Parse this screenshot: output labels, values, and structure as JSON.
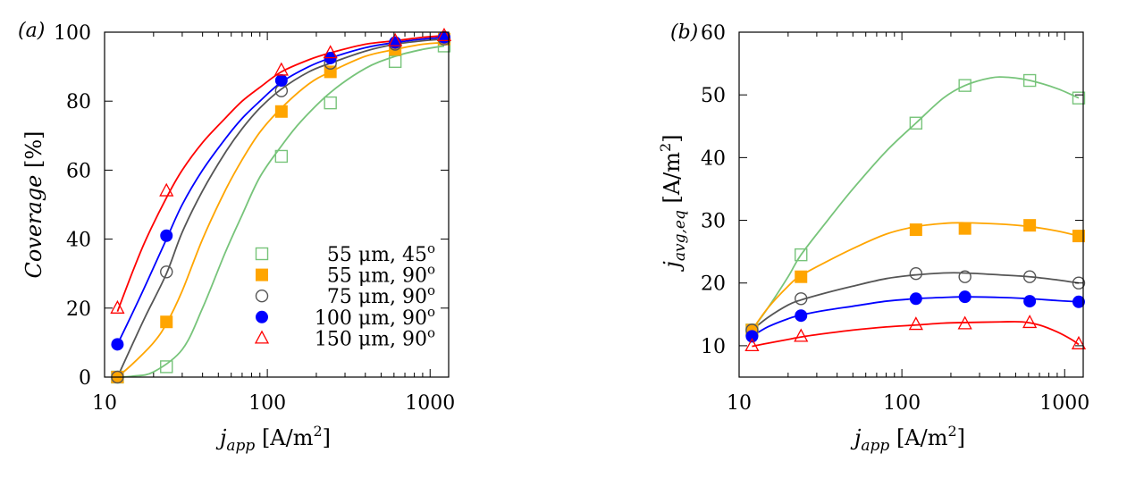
{
  "chart_data": [
    {
      "panel_label": "(a)",
      "type": "scatter",
      "xscale": "log",
      "xlim": [
        10,
        1300
      ],
      "ylim": [
        0,
        100
      ],
      "xticks": [
        {
          "v": 10,
          "label": "10"
        },
        {
          "v": 100,
          "label": "100"
        },
        {
          "v": 1000,
          "label": "1000"
        }
      ],
      "yticks": [
        {
          "v": 0,
          "label": "0"
        },
        {
          "v": 20,
          "label": "20"
        },
        {
          "v": 40,
          "label": "40"
        },
        {
          "v": 60,
          "label": "60"
        },
        {
          "v": 80,
          "label": "80"
        },
        {
          "v": 100,
          "label": "100"
        }
      ],
      "xlabel_main": "j",
      "xlabel_sub": "app",
      "xlabel_unit": " [A/m",
      "xlabel_sup": "2",
      "xlabel_close": "]",
      "ylabel_main": "Coverage",
      "ylabel_unit": " [%]",
      "legend_position": "bottom-right",
      "series": [
        {
          "name": "55 μm, 45°",
          "unit_text": "55 μm, 45",
          "deg": "o",
          "color": "#77c47a",
          "marker": "square-open",
          "x": [
            12,
            24,
            122,
            244,
            610,
            1220
          ],
          "y": [
            0,
            3,
            64,
            79.5,
            91.5,
            96
          ],
          "curve": [
            [
              12,
              0
            ],
            [
              15,
              0.3
            ],
            [
              20,
              1.5
            ],
            [
              30,
              8
            ],
            [
              40,
              20
            ],
            [
              55,
              36
            ],
            [
              70,
              47
            ],
            [
              90,
              58
            ],
            [
              122,
              67
            ],
            [
              160,
              74
            ],
            [
              244,
              82.5
            ],
            [
              400,
              89.5
            ],
            [
              610,
              93
            ],
            [
              900,
              95
            ],
            [
              1220,
              96
            ]
          ]
        },
        {
          "name": "55 μm, 90°",
          "unit_text": "55 μm, 90",
          "deg": "o",
          "color": "#ffa500",
          "marker": "square-filled",
          "x": [
            12,
            24,
            122,
            244,
            610,
            1220
          ],
          "y": [
            0,
            16,
            77,
            88.5,
            95,
            98
          ],
          "curve": [
            [
              12,
              0
            ],
            [
              15,
              4
            ],
            [
              20,
              10
            ],
            [
              24,
              15.5
            ],
            [
              30,
              25
            ],
            [
              40,
              40
            ],
            [
              55,
              54
            ],
            [
              70,
              63
            ],
            [
              90,
              71
            ],
            [
              122,
              78
            ],
            [
              180,
              85
            ],
            [
              244,
              88.5
            ],
            [
              400,
              93
            ],
            [
              610,
              95
            ],
            [
              900,
              96.5
            ],
            [
              1220,
              97
            ]
          ]
        },
        {
          "name": "75 μm, 90°",
          "unit_text": "75 μm, 90",
          "deg": "o",
          "color": "#555555",
          "marker": "circle-open",
          "x": [
            12,
            24,
            122,
            244,
            610,
            1220
          ],
          "y": [
            0,
            30.5,
            83,
            91,
            96.5,
            98
          ],
          "curve": [
            [
              12,
              0
            ],
            [
              15,
              10
            ],
            [
              18,
              18
            ],
            [
              24,
              30
            ],
            [
              30,
              42
            ],
            [
              40,
              54
            ],
            [
              55,
              65
            ],
            [
              70,
              72
            ],
            [
              90,
              78
            ],
            [
              122,
              83.5
            ],
            [
              180,
              88.5
            ],
            [
              244,
              91
            ],
            [
              400,
              94.5
            ],
            [
              610,
              96.5
            ],
            [
              900,
              97.5
            ],
            [
              1220,
              98
            ]
          ]
        },
        {
          "name": "100 μm, 90°",
          "unit_text": "100 μm, 90",
          "deg": "o",
          "color": "#0000ff",
          "marker": "circle-filled",
          "x": [
            12,
            24,
            122,
            244,
            610,
            1220
          ],
          "y": [
            9.5,
            41,
            86,
            92.5,
            97,
            98.5
          ],
          "curve": [
            [
              12,
              9.5
            ],
            [
              15,
              19
            ],
            [
              18,
              27
            ],
            [
              24,
              40
            ],
            [
              30,
              50
            ],
            [
              40,
              60
            ],
            [
              55,
              69
            ],
            [
              70,
              75
            ],
            [
              90,
              80
            ],
            [
              122,
              85.5
            ],
            [
              180,
              90
            ],
            [
              244,
              92.5
            ],
            [
              400,
              95.5
            ],
            [
              610,
              97
            ],
            [
              900,
              98
            ],
            [
              1220,
              98.5
            ]
          ]
        },
        {
          "name": "150 μm, 90°",
          "unit_text": "150 μm, 90",
          "deg": "o",
          "color": "#ff0000",
          "marker": "triangle-open",
          "x": [
            12,
            24,
            122,
            244,
            610,
            1220
          ],
          "y": [
            20,
            54,
            89,
            94,
            97.5,
            99
          ],
          "curve": [
            [
              12,
              19
            ],
            [
              15,
              31
            ],
            [
              18,
              40
            ],
            [
              24,
              52
            ],
            [
              30,
              60
            ],
            [
              40,
              68
            ],
            [
              55,
              75
            ],
            [
              70,
              80
            ],
            [
              90,
              84
            ],
            [
              122,
              88.5
            ],
            [
              180,
              92
            ],
            [
              244,
              94
            ],
            [
              400,
              96.5
            ],
            [
              610,
              97.5
            ],
            [
              900,
              98.5
            ],
            [
              1220,
              99
            ]
          ]
        }
      ]
    },
    {
      "panel_label": "(b)",
      "type": "scatter",
      "xscale": "log",
      "xlim": [
        10,
        1300
      ],
      "ylim": [
        5,
        60
      ],
      "xticks": [
        {
          "v": 10,
          "label": "10"
        },
        {
          "v": 100,
          "label": "100"
        },
        {
          "v": 1000,
          "label": "1000"
        }
      ],
      "yticks": [
        {
          "v": 10,
          "label": "10"
        },
        {
          "v": 20,
          "label": "20"
        },
        {
          "v": 30,
          "label": "30"
        },
        {
          "v": 40,
          "label": "40"
        },
        {
          "v": 50,
          "label": "50"
        },
        {
          "v": 60,
          "label": "60"
        }
      ],
      "xlabel_main": "j",
      "xlabel_sub": "app",
      "xlabel_unit": " [A/m",
      "xlabel_sup": "2",
      "xlabel_close": "]",
      "ylabel_main": "j",
      "ylabel_sub": "avg,eq",
      "ylabel_unit": " [A/m",
      "ylabel_sup": "2",
      "ylabel_close": "]",
      "series": [
        {
          "name": "55 μm, 45°",
          "color": "#77c47a",
          "marker": "square-open",
          "x": [
            12,
            24,
            122,
            244,
            610,
            1220
          ],
          "y": [
            12.5,
            24.5,
            45.5,
            51.5,
            52.3,
            49.5
          ],
          "curve": [
            [
              12,
              12.5
            ],
            [
              15,
              16
            ],
            [
              20,
              21
            ],
            [
              24,
              24.5
            ],
            [
              35,
              30
            ],
            [
              50,
              35
            ],
            [
              80,
              41
            ],
            [
              122,
              45.5
            ],
            [
              180,
              49.5
            ],
            [
              244,
              51.5
            ],
            [
              350,
              52.7
            ],
            [
              450,
              52.8
            ],
            [
              610,
              52.3
            ],
            [
              900,
              51
            ],
            [
              1220,
              49.5
            ]
          ]
        },
        {
          "name": "55 μm, 90°",
          "color": "#ffa500",
          "marker": "square-filled",
          "x": [
            12,
            24,
            122,
            244,
            610,
            1220
          ],
          "y": [
            12.5,
            21,
            28.5,
            28.7,
            29.2,
            27.5
          ],
          "curve": [
            [
              12,
              12.5
            ],
            [
              15,
              16
            ],
            [
              20,
              19.5
            ],
            [
              24,
              21.2
            ],
            [
              35,
              23.5
            ],
            [
              50,
              25.5
            ],
            [
              80,
              27.8
            ],
            [
              122,
              29
            ],
            [
              180,
              29.5
            ],
            [
              244,
              29.6
            ],
            [
              400,
              29.4
            ],
            [
              610,
              29
            ],
            [
              900,
              28.3
            ],
            [
              1220,
              27.5
            ]
          ]
        },
        {
          "name": "75 μm, 90°",
          "color": "#555555",
          "marker": "circle-open",
          "x": [
            12,
            24,
            122,
            244,
            610,
            1220
          ],
          "y": [
            12.5,
            17.5,
            21.5,
            21,
            21,
            20
          ],
          "curve": [
            [
              12,
              12.5
            ],
            [
              15,
              14.5
            ],
            [
              20,
              16.5
            ],
            [
              24,
              17.3
            ],
            [
              35,
              18.5
            ],
            [
              50,
              19.5
            ],
            [
              80,
              20.7
            ],
            [
              122,
              21.3
            ],
            [
              180,
              21.6
            ],
            [
              244,
              21.6
            ],
            [
              400,
              21.3
            ],
            [
              610,
              21
            ],
            [
              900,
              20.5
            ],
            [
              1220,
              20
            ]
          ]
        },
        {
          "name": "100 μm, 90°",
          "color": "#0000ff",
          "marker": "circle-filled",
          "x": [
            12,
            24,
            122,
            244,
            610,
            1220
          ],
          "y": [
            11.5,
            14.8,
            17.5,
            17.8,
            17.1,
            17
          ],
          "curve": [
            [
              12,
              11.5
            ],
            [
              15,
              13
            ],
            [
              20,
              14.3
            ],
            [
              24,
              14.9
            ],
            [
              35,
              15.7
            ],
            [
              50,
              16.3
            ],
            [
              80,
              17.1
            ],
            [
              122,
              17.5
            ],
            [
              180,
              17.7
            ],
            [
              244,
              17.8
            ],
            [
              400,
              17.7
            ],
            [
              610,
              17.5
            ],
            [
              900,
              17.2
            ],
            [
              1220,
              17
            ]
          ]
        },
        {
          "name": "150 μm, 90°",
          "color": "#ff0000",
          "marker": "triangle-open",
          "x": [
            12,
            24,
            122,
            244,
            610,
            1220
          ],
          "y": [
            10,
            11.5,
            13.4,
            13.5,
            13.7,
            10.3
          ],
          "curve": [
            [
              12,
              9.9
            ],
            [
              15,
              10.4
            ],
            [
              20,
              11
            ],
            [
              24,
              11.4
            ],
            [
              35,
              12
            ],
            [
              50,
              12.5
            ],
            [
              80,
              13
            ],
            [
              122,
              13.3
            ],
            [
              180,
              13.6
            ],
            [
              244,
              13.7
            ],
            [
              400,
              13.8
            ],
            [
              550,
              13.8
            ],
            [
              700,
              13.3
            ],
            [
              900,
              12.2
            ],
            [
              1100,
              11
            ],
            [
              1220,
              10.2
            ]
          ]
        }
      ]
    }
  ]
}
